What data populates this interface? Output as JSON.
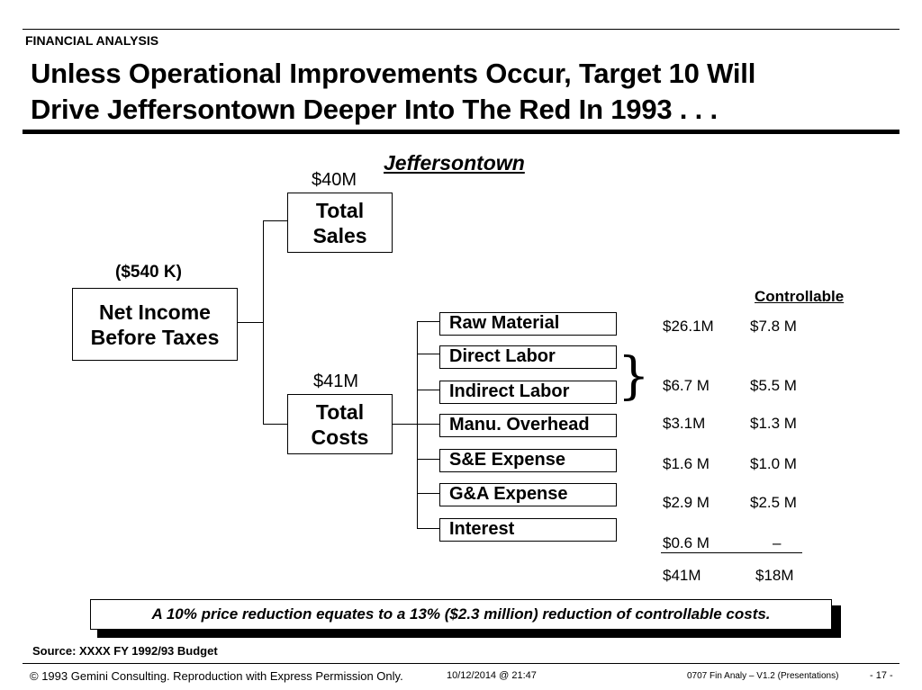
{
  "header": {
    "section": "FINANCIAL ANALYSIS",
    "title_line1": "Unless Operational Improvements Occur, Target 10 Will",
    "title_line2": "Drive Jeffersontown Deeper Into The Red In 1993 . . ."
  },
  "diagram": {
    "subject": "Jeffersontown",
    "net_income": {
      "value": "($540 K)",
      "line1": "Net Income",
      "line2": "Before Taxes"
    },
    "sales": {
      "value": "$40M",
      "line1": "Total",
      "line2": "Sales"
    },
    "costs": {
      "value": "$41M",
      "line1": "Total",
      "line2": "Costs"
    },
    "controllable_header": "Controllable",
    "categories": [
      {
        "label": "Raw Material",
        "total": "$26.1M",
        "controllable": "$7.8 M"
      },
      {
        "label": "Direct Labor"
      },
      {
        "label": "Indirect Labor",
        "total": "$6.7 M",
        "controllable": "$5.5 M"
      },
      {
        "label": "Manu. Overhead",
        "total": "$3.1M",
        "controllable": "$1.3 M"
      },
      {
        "label": "S&E Expense",
        "total": "$1.6 M",
        "controllable": "$1.0 M"
      },
      {
        "label": "G&A Expense",
        "total": "$2.9 M",
        "controllable": "$2.5 M"
      },
      {
        "label": "Interest",
        "total": "$0.6 M",
        "controllable": "–"
      }
    ],
    "totals": {
      "total": "$41M",
      "controllable": "$18M"
    }
  },
  "callout": "A 10% price reduction equates to a 13% ($2.3 million) reduction of controllable costs.",
  "source": "Source: XXXX FY 1992/93  Budget",
  "footer": {
    "copyright": "© 1993 Gemini Consulting. Reproduction with Express Permission Only.",
    "datetime": "10/12/2014 @ 21:47",
    "file": "0707 Fin Analy – V1.2 (Presentations)",
    "page": "- 17 -"
  }
}
